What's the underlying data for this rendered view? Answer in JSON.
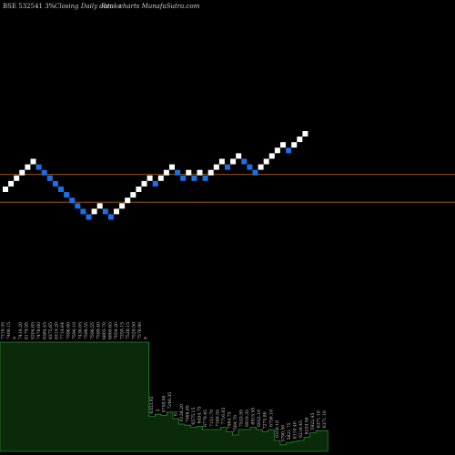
{
  "header": {
    "code": "BSE 532541 3%",
    "description": "Closing Daily data",
    "chart_kind": "Renko",
    "site": "charts MunafaSutra.com"
  },
  "colors": {
    "background": "#000000",
    "up_brick": "#ffffff",
    "down_brick": "#1e6ee6",
    "hline": "#b06010",
    "volume_fill": "#0a2a0a",
    "volume_stroke": "#2a8a2a",
    "label_text": "#cccccc"
  },
  "chart_data": {
    "type": "renko",
    "bricks": [
      {
        "level": 0,
        "dir": "up"
      },
      {
        "level": 1,
        "dir": "up"
      },
      {
        "level": 2,
        "dir": "up"
      },
      {
        "level": 3,
        "dir": "up"
      },
      {
        "level": 4,
        "dir": "up"
      },
      {
        "level": 5,
        "dir": "up"
      },
      {
        "level": 4,
        "dir": "down"
      },
      {
        "level": 3,
        "dir": "down"
      },
      {
        "level": 2,
        "dir": "down"
      },
      {
        "level": 1,
        "dir": "down"
      },
      {
        "level": 0,
        "dir": "down"
      },
      {
        "level": -1,
        "dir": "down"
      },
      {
        "level": -2,
        "dir": "down"
      },
      {
        "level": -3,
        "dir": "down"
      },
      {
        "level": -4,
        "dir": "down"
      },
      {
        "level": -5,
        "dir": "down"
      },
      {
        "level": -4,
        "dir": "up"
      },
      {
        "level": -3,
        "dir": "up"
      },
      {
        "level": -4,
        "dir": "down"
      },
      {
        "level": -5,
        "dir": "down"
      },
      {
        "level": -4,
        "dir": "up"
      },
      {
        "level": -3,
        "dir": "up"
      },
      {
        "level": -2,
        "dir": "up"
      },
      {
        "level": -1,
        "dir": "up"
      },
      {
        "level": 0,
        "dir": "up"
      },
      {
        "level": 1,
        "dir": "up"
      },
      {
        "level": 2,
        "dir": "up"
      },
      {
        "level": 1,
        "dir": "down"
      },
      {
        "level": 2,
        "dir": "up"
      },
      {
        "level": 3,
        "dir": "up"
      },
      {
        "level": 4,
        "dir": "up"
      },
      {
        "level": 3,
        "dir": "down"
      },
      {
        "level": 2,
        "dir": "down"
      },
      {
        "level": 3,
        "dir": "up"
      },
      {
        "level": 2,
        "dir": "down"
      },
      {
        "level": 3,
        "dir": "up"
      },
      {
        "level": 2,
        "dir": "down"
      },
      {
        "level": 3,
        "dir": "up"
      },
      {
        "level": 4,
        "dir": "up"
      },
      {
        "level": 5,
        "dir": "up"
      },
      {
        "level": 4,
        "dir": "down"
      },
      {
        "level": 5,
        "dir": "up"
      },
      {
        "level": 6,
        "dir": "up"
      },
      {
        "level": 5,
        "dir": "down"
      },
      {
        "level": 4,
        "dir": "down"
      },
      {
        "level": 3,
        "dir": "down"
      },
      {
        "level": 4,
        "dir": "up"
      },
      {
        "level": 5,
        "dir": "up"
      },
      {
        "level": 6,
        "dir": "up"
      },
      {
        "level": 7,
        "dir": "up"
      },
      {
        "level": 8,
        "dir": "up"
      },
      {
        "level": 7,
        "dir": "down"
      },
      {
        "level": 8,
        "dir": "up"
      },
      {
        "level": 9,
        "dir": "up"
      },
      {
        "level": 10,
        "dir": "up"
      }
    ],
    "reference_lines_levels": [
      3,
      -2
    ],
    "volume": {
      "labels": [
        "7316.35",
        "7400.15",
        "9",
        "7416.20",
        "8179.95",
        "8204.65",
        "7478.60",
        "8384.45",
        "8375.65",
        "8319.20",
        "7714.64",
        "7596.80",
        "7590.10",
        "7436.05",
        "7596.55",
        "7596.55",
        "7599.40",
        "6805.70",
        "6800.65",
        "7054.20",
        "7259.15",
        "7528.15",
        "7529.50",
        "7576.90",
        "8",
        "6353.95",
        "5",
        "5758.00",
        "7246.35",
        "61",
        "6128.20",
        "7566.85",
        "6575.15",
        "6454.75",
        "6779.45",
        "7151.70",
        "7346.55",
        "7716.65",
        "7564.75",
        "7564.70",
        "7533.95",
        "6910.35",
        "6915.95",
        "6922.10",
        "7275.80",
        "6750.10",
        "6350.10",
        "5790.50",
        "5821.75",
        "6110.40",
        "6216.45",
        "6253.50",
        "5922.45",
        "6371.10",
        "6371.10"
      ],
      "relative_heights": [
        1.0,
        1.0,
        1.0,
        1.0,
        1.0,
        1.0,
        1.0,
        1.0,
        1.0,
        1.0,
        1.0,
        1.0,
        1.0,
        1.0,
        1.0,
        1.0,
        1.0,
        1.0,
        1.0,
        1.0,
        1.0,
        1.0,
        1.0,
        1.0,
        1.0,
        0.32,
        0.34,
        0.33,
        0.36,
        0.3,
        0.25,
        0.24,
        0.22,
        0.23,
        0.2,
        0.2,
        0.2,
        0.22,
        0.18,
        0.15,
        0.2,
        0.2,
        0.22,
        0.2,
        0.18,
        0.2,
        0.1,
        0.06,
        0.08,
        0.09,
        0.1,
        0.13,
        0.17,
        0.19,
        0.19
      ]
    }
  }
}
